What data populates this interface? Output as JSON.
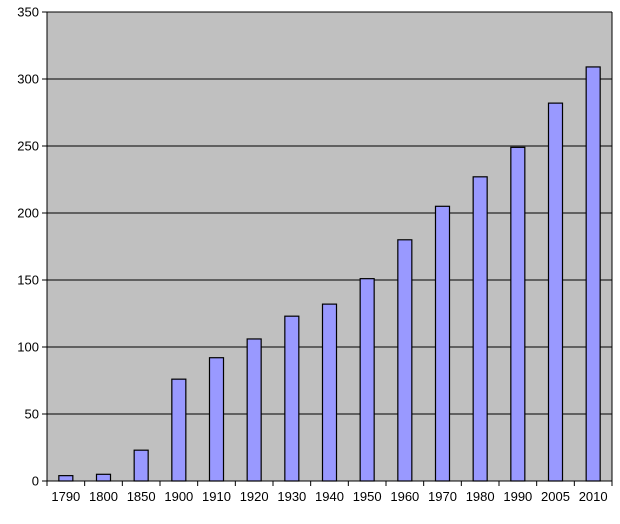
{
  "chart_data": {
    "type": "bar",
    "categories": [
      "1790",
      "1800",
      "1850",
      "1900",
      "1910",
      "1920",
      "1930",
      "1940",
      "1950",
      "1960",
      "1970",
      "1980",
      "1990",
      "2005",
      "2010"
    ],
    "values": [
      4,
      5,
      23,
      76,
      92,
      106,
      123,
      132,
      151,
      180,
      205,
      227,
      249,
      282,
      309
    ],
    "title": "",
    "xlabel": "",
    "ylabel": "",
    "ylim": [
      0,
      350
    ],
    "yticks": [
      "0",
      "50",
      "100",
      "150",
      "200",
      "250",
      "300",
      "350"
    ],
    "ytick_values": [
      0,
      50,
      100,
      150,
      200,
      250,
      300,
      350
    ],
    "grid": true,
    "legend": "none",
    "colors": {
      "bar_fill": "#9999ff",
      "plot_background": "#c0c0c0",
      "gridline": "#000000"
    }
  }
}
